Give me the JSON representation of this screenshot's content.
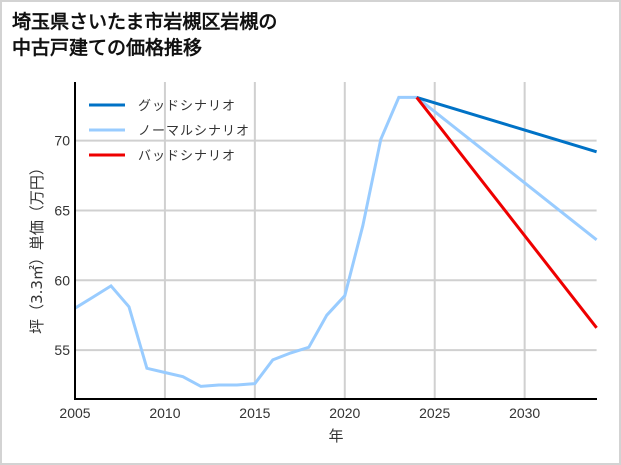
{
  "title_line1": "埼玉県さいたま市岩槻区岩槻の",
  "title_line2": "中古戸建ての価格推移",
  "chart_data": {
    "type": "line",
    "title": "埼玉県さいたま市岩槻区岩槻の中古戸建ての価格推移",
    "xlabel": "年",
    "ylabel": "坪（3.3㎡）単価（万円）",
    "xlim": [
      2005,
      2034
    ],
    "ylim": [
      51.5,
      74.2
    ],
    "x_ticks": [
      2005,
      2010,
      2015,
      2020,
      2025,
      2030
    ],
    "y_ticks": [
      55,
      60,
      65,
      70
    ],
    "grid": true,
    "legend_position": "upper left",
    "series": [
      {
        "name": "グッドシナリオ",
        "color": "#0072c6",
        "x": [
          2024,
          2034
        ],
        "values": [
          73.1,
          69.2
        ]
      },
      {
        "name": "ノーマルシナリオ",
        "color": "#99ccff",
        "x": [
          2005,
          2006,
          2007,
          2008,
          2009,
          2010,
          2011,
          2012,
          2013,
          2014,
          2015,
          2016,
          2017,
          2018,
          2019,
          2020,
          2021,
          2022,
          2023,
          2024,
          2034
        ],
        "values": [
          58.0,
          58.8,
          59.6,
          58.1,
          53.7,
          53.4,
          53.1,
          52.4,
          52.5,
          52.5,
          52.6,
          54.3,
          54.8,
          55.2,
          57.5,
          58.9,
          63.9,
          70.1,
          73.1,
          73.1,
          62.9
        ]
      },
      {
        "name": "バッドシナリオ",
        "color": "#ee0000",
        "x": [
          2024,
          2034
        ],
        "values": [
          73.1,
          56.6
        ]
      }
    ]
  },
  "legend": {
    "items": [
      {
        "label": "グッドシナリオ",
        "color": "#0072c6"
      },
      {
        "label": "ノーマルシナリオ",
        "color": "#99ccff"
      },
      {
        "label": "バッドシナリオ",
        "color": "#ee0000"
      }
    ]
  },
  "axes": {
    "xlabel": "年",
    "ylabel": "坪（3.3㎡）単価（万円）",
    "x_tick_labels": [
      "2005",
      "2010",
      "2015",
      "2020",
      "2025",
      "2030"
    ],
    "y_tick_labels": [
      "55",
      "60",
      "65",
      "70"
    ]
  }
}
